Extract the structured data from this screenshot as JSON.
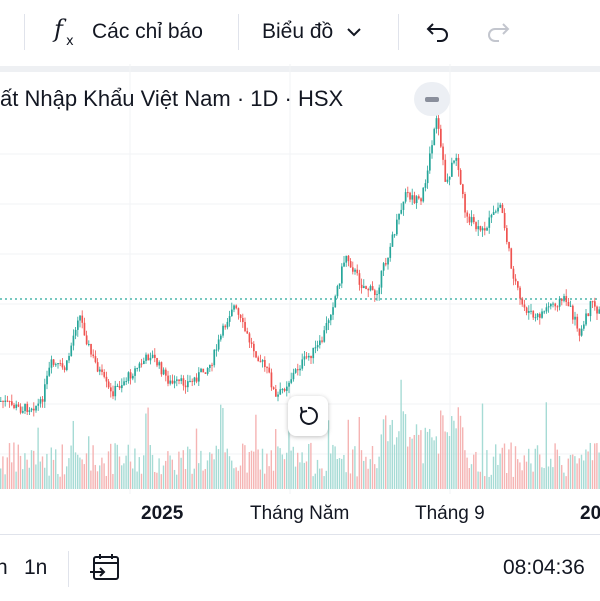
{
  "toolbar": {
    "indicators_label": "Các chỉ báo",
    "chart_type_label": "Biểu đồ",
    "icons": [
      "fx-icon",
      "chevron-down-icon",
      "undo-icon",
      "redo-icon"
    ]
  },
  "chart": {
    "title": "ất Nhập Khẩu Việt Nam · 1D · HSX",
    "x_labels": [
      "2025",
      "Tháng Năm",
      "Tháng 9",
      "20"
    ]
  },
  "bottom_bar": {
    "range_a": "n",
    "range_b": "1n",
    "time": "08:04:36"
  },
  "colors": {
    "up": "#26a69a",
    "down": "#ef5350",
    "reference_line": "#26a69a"
  }
}
